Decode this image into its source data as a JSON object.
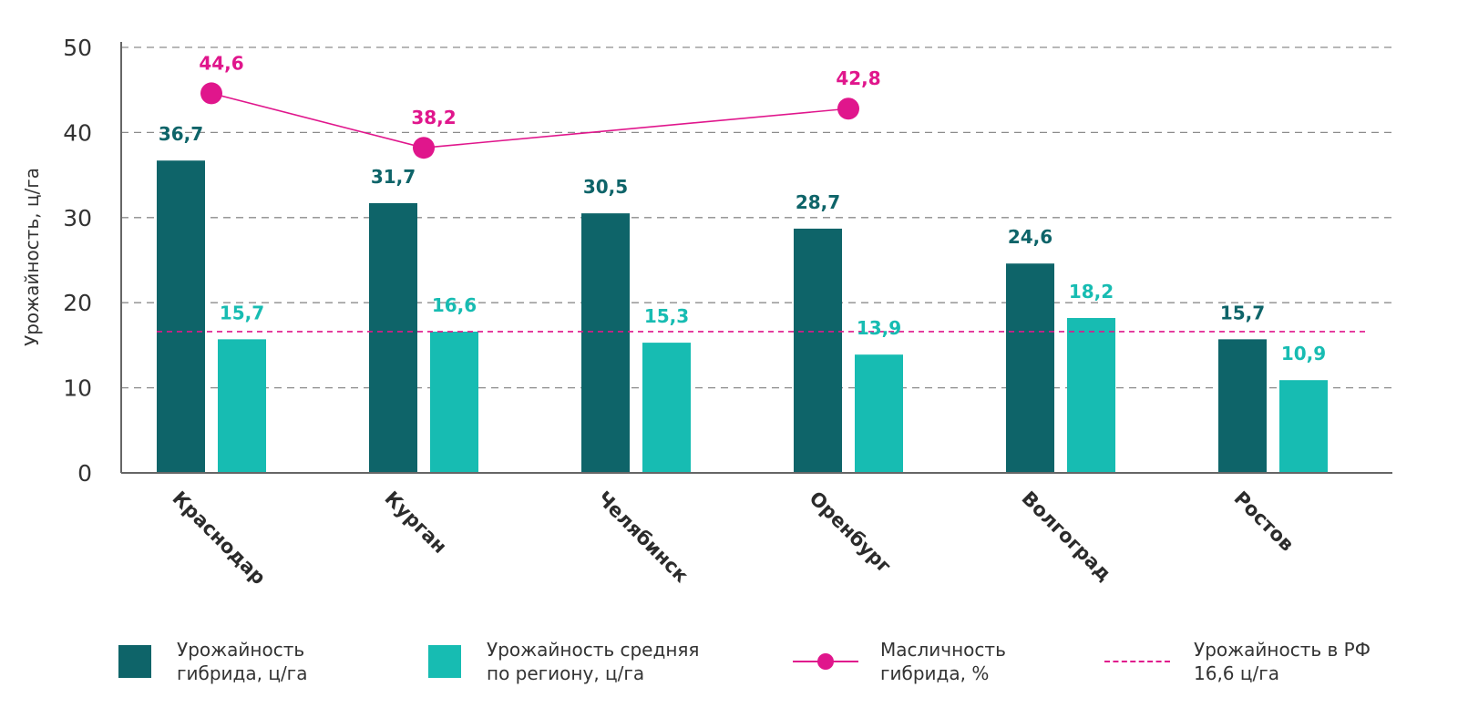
{
  "chart_data": {
    "type": "bar",
    "ylabel": "Урожайность, ц/га",
    "ylim": [
      0,
      50
    ],
    "yticks": [
      0,
      10,
      20,
      30,
      40,
      50
    ],
    "grid": true,
    "categories": [
      "Краснодар",
      "Курган",
      "Челябинск",
      "Оренбург",
      "Волгоград",
      "Ростов"
    ],
    "series": [
      {
        "name": "Урожайность гибрида, ц/га",
        "type": "bar",
        "color": "#0e6469",
        "values": [
          36.7,
          31.7,
          30.5,
          28.7,
          24.6,
          15.7
        ],
        "labels": [
          "36,7",
          "31,7",
          "30,5",
          "28,7",
          "24,6",
          "15,7"
        ]
      },
      {
        "name": "Урожайность средняя по региону, ц/га",
        "type": "bar",
        "color": "#17bcb2",
        "values": [
          15.7,
          16.6,
          15.3,
          13.9,
          18.2,
          10.9
        ],
        "labels": [
          "15,7",
          "16,6",
          "15,3",
          "13,9",
          "18,2",
          "10,9"
        ]
      },
      {
        "name": "Масличность гибрида, %",
        "type": "line",
        "color": "#e0168c",
        "values": [
          44.6,
          38.2,
          null,
          42.8,
          null,
          null
        ],
        "labels": [
          "44,6",
          "38,2",
          null,
          "42,8",
          null,
          null
        ]
      }
    ],
    "reference_line": {
      "name": "Урожайность в РФ 16,6 ц/га",
      "value": 16.6,
      "color": "#e0168c",
      "style": "dashed"
    },
    "legend_position": "bottom"
  },
  "legend": {
    "items": [
      {
        "line1": "Урожайность",
        "line2": "гибрида, ц/га"
      },
      {
        "line1": "Урожайность средняя",
        "line2": "по региону, ц/га"
      },
      {
        "line1": "Масличность",
        "line2": "гибрида, %"
      },
      {
        "line1": "Урожайность в РФ",
        "line2": "16,6 ц/га"
      }
    ]
  }
}
